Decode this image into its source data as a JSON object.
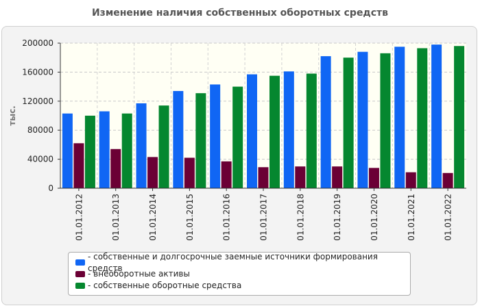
{
  "chart_data": {
    "type": "bar",
    "title": "Изменение наличия собственных оборотных средств",
    "ylabel": "тыс.",
    "xlabel": "",
    "ylim": [
      0,
      200000
    ],
    "yticks": [
      "0",
      "40000",
      "80000",
      "120000",
      "160000",
      "200000"
    ],
    "categories": [
      "01.01.2012",
      "01.01.2013",
      "01.01.2014",
      "01.01.2015",
      "01.01.2016",
      "01.01.2017",
      "01.01.2018",
      "01.01.2019",
      "01.01.2020",
      "01.01.2021",
      "01.01.2022"
    ],
    "series": [
      {
        "name": "собственные и долгосрочные заемные источники формирования средств",
        "legend": "- собственные и долгосрочные заемные источники формирования средств",
        "color": "#1066f4",
        "values": [
          103000,
          106000,
          117000,
          134000,
          143000,
          157000,
          161000,
          182000,
          188000,
          195000,
          198000
        ]
      },
      {
        "name": "внеоборотные активы",
        "legend": "- внеоборотные активы",
        "color": "#6b0035",
        "values": [
          62000,
          54000,
          43000,
          42000,
          37000,
          29000,
          30000,
          30000,
          28000,
          22000,
          21000
        ]
      },
      {
        "name": "собственные оборотные средства",
        "legend": "- собственные оборотные средства",
        "color": "#05872f",
        "values": [
          100000,
          103000,
          114000,
          131000,
          140000,
          155000,
          158000,
          180000,
          186000,
          193000,
          196000
        ]
      }
    ],
    "grid": true,
    "legend_position": "bottom"
  }
}
